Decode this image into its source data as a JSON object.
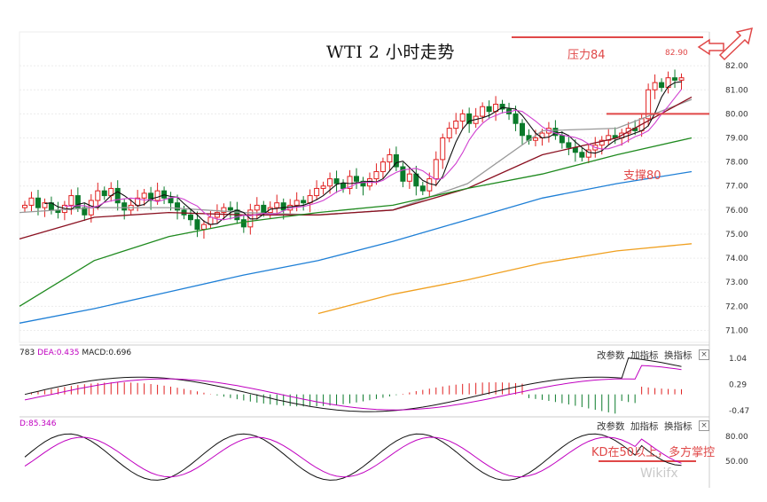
{
  "chart_data": {
    "type": "candlestick",
    "title": "WTI 2 小时走势",
    "price_axis": {
      "ticks": [
        "82.00",
        "81.00",
        "80.00",
        "79.00",
        "78.00",
        "77.00",
        "76.00",
        "75.00",
        "74.00",
        "73.00",
        "72.00",
        "71.00"
      ],
      "ylim": [
        70.5,
        82.3
      ]
    },
    "annotations": {
      "resistance_label": "压力84",
      "resistance_price": "82.90",
      "support_label": "支撑80",
      "support_level": 80.0,
      "kd_note": "KD在50以上，多方掌控"
    },
    "colors": {
      "up": "#e02020",
      "down": "#0a7a2a",
      "ma_black": "#111111",
      "ma_magenta": "#d040d0",
      "ma_gray": "#999999",
      "ma_darkred": "#8a1020",
      "ma_green": "#1f8a1f",
      "ma_blue": "#1e7fd6",
      "ma_orange": "#f0a020",
      "annotation": "#e04848"
    },
    "closes": [
      76.2,
      76.5,
      76.1,
      76.3,
      76.0,
      75.9,
      76.2,
      76.6,
      76.1,
      75.8,
      76.4,
      76.8,
      76.6,
      76.9,
      76.3,
      76.0,
      76.2,
      76.5,
      76.7,
      76.4,
      76.8,
      76.5,
      76.3,
      76.0,
      75.8,
      75.6,
      75.2,
      75.4,
      75.7,
      75.9,
      76.1,
      76.0,
      75.6,
      75.3,
      76.0,
      76.2,
      75.9,
      76.1,
      76.3,
      76.0,
      76.2,
      76.4,
      76.3,
      76.6,
      76.9,
      77.0,
      77.3,
      77.1,
      76.9,
      77.4,
      77.2,
      77.0,
      77.3,
      77.6,
      78.0,
      78.3,
      77.8,
      77.2,
      77.5,
      77.0,
      76.8,
      77.3,
      78.1,
      79.0,
      79.4,
      79.7,
      80.0,
      79.6,
      79.9,
      80.3,
      80.1,
      80.4,
      80.2,
      80.0,
      79.6,
      79.1,
      78.9,
      79.0,
      79.2,
      79.4,
      79.1,
      78.8,
      78.6,
      78.4,
      78.2,
      78.5,
      78.7,
      78.9,
      79.1,
      79.0,
      79.2,
      79.4,
      79.3,
      79.8,
      81.0,
      81.3,
      81.1,
      81.5,
      81.4,
      81.5
    ],
    "ma_lines": [
      {
        "color_key": "ma_gray",
        "values_sample": [
          75.9,
          76.1,
          76.1,
          75.9,
          75.8,
          76.0,
          77.1,
          79.3,
          79.4,
          80.6
        ]
      },
      {
        "color_key": "ma_darkred",
        "values_sample": [
          74.8,
          75.7,
          75.9,
          75.8,
          75.8,
          76.0,
          76.9,
          78.3,
          79.0,
          80.7
        ]
      },
      {
        "color_key": "ma_green",
        "values_sample": [
          72.0,
          73.9,
          74.9,
          75.5,
          75.9,
          76.2,
          76.9,
          77.5,
          78.3,
          79.0
        ]
      },
      {
        "color_key": "ma_blue",
        "values_sample": [
          71.3,
          71.9,
          72.6,
          73.3,
          73.9,
          74.7,
          75.6,
          76.5,
          77.1,
          77.6
        ]
      },
      {
        "color_key": "ma_orange",
        "values_sample": [
          null,
          null,
          null,
          null,
          71.7,
          72.5,
          73.1,
          73.8,
          74.3,
          74.6
        ]
      }
    ],
    "macd": {
      "label_prefix": "783",
      "dea_label": "DEA:0.435",
      "macd_label": "MACD:0.696",
      "axis_ticks": [
        "1.04",
        "0.29",
        "-0.47"
      ],
      "ylim": [
        -0.6,
        1.2
      ]
    },
    "kd": {
      "label": "D:85.346",
      "axis_ticks": [
        "80.00",
        "50.00"
      ],
      "ylim": [
        20,
        95
      ],
      "reference_level": 50
    }
  },
  "controls": {
    "change_params": "改参数",
    "add_indicator": "加指标",
    "switch_indicator": "换指标",
    "close": "×"
  },
  "watermark": "Wikifx"
}
